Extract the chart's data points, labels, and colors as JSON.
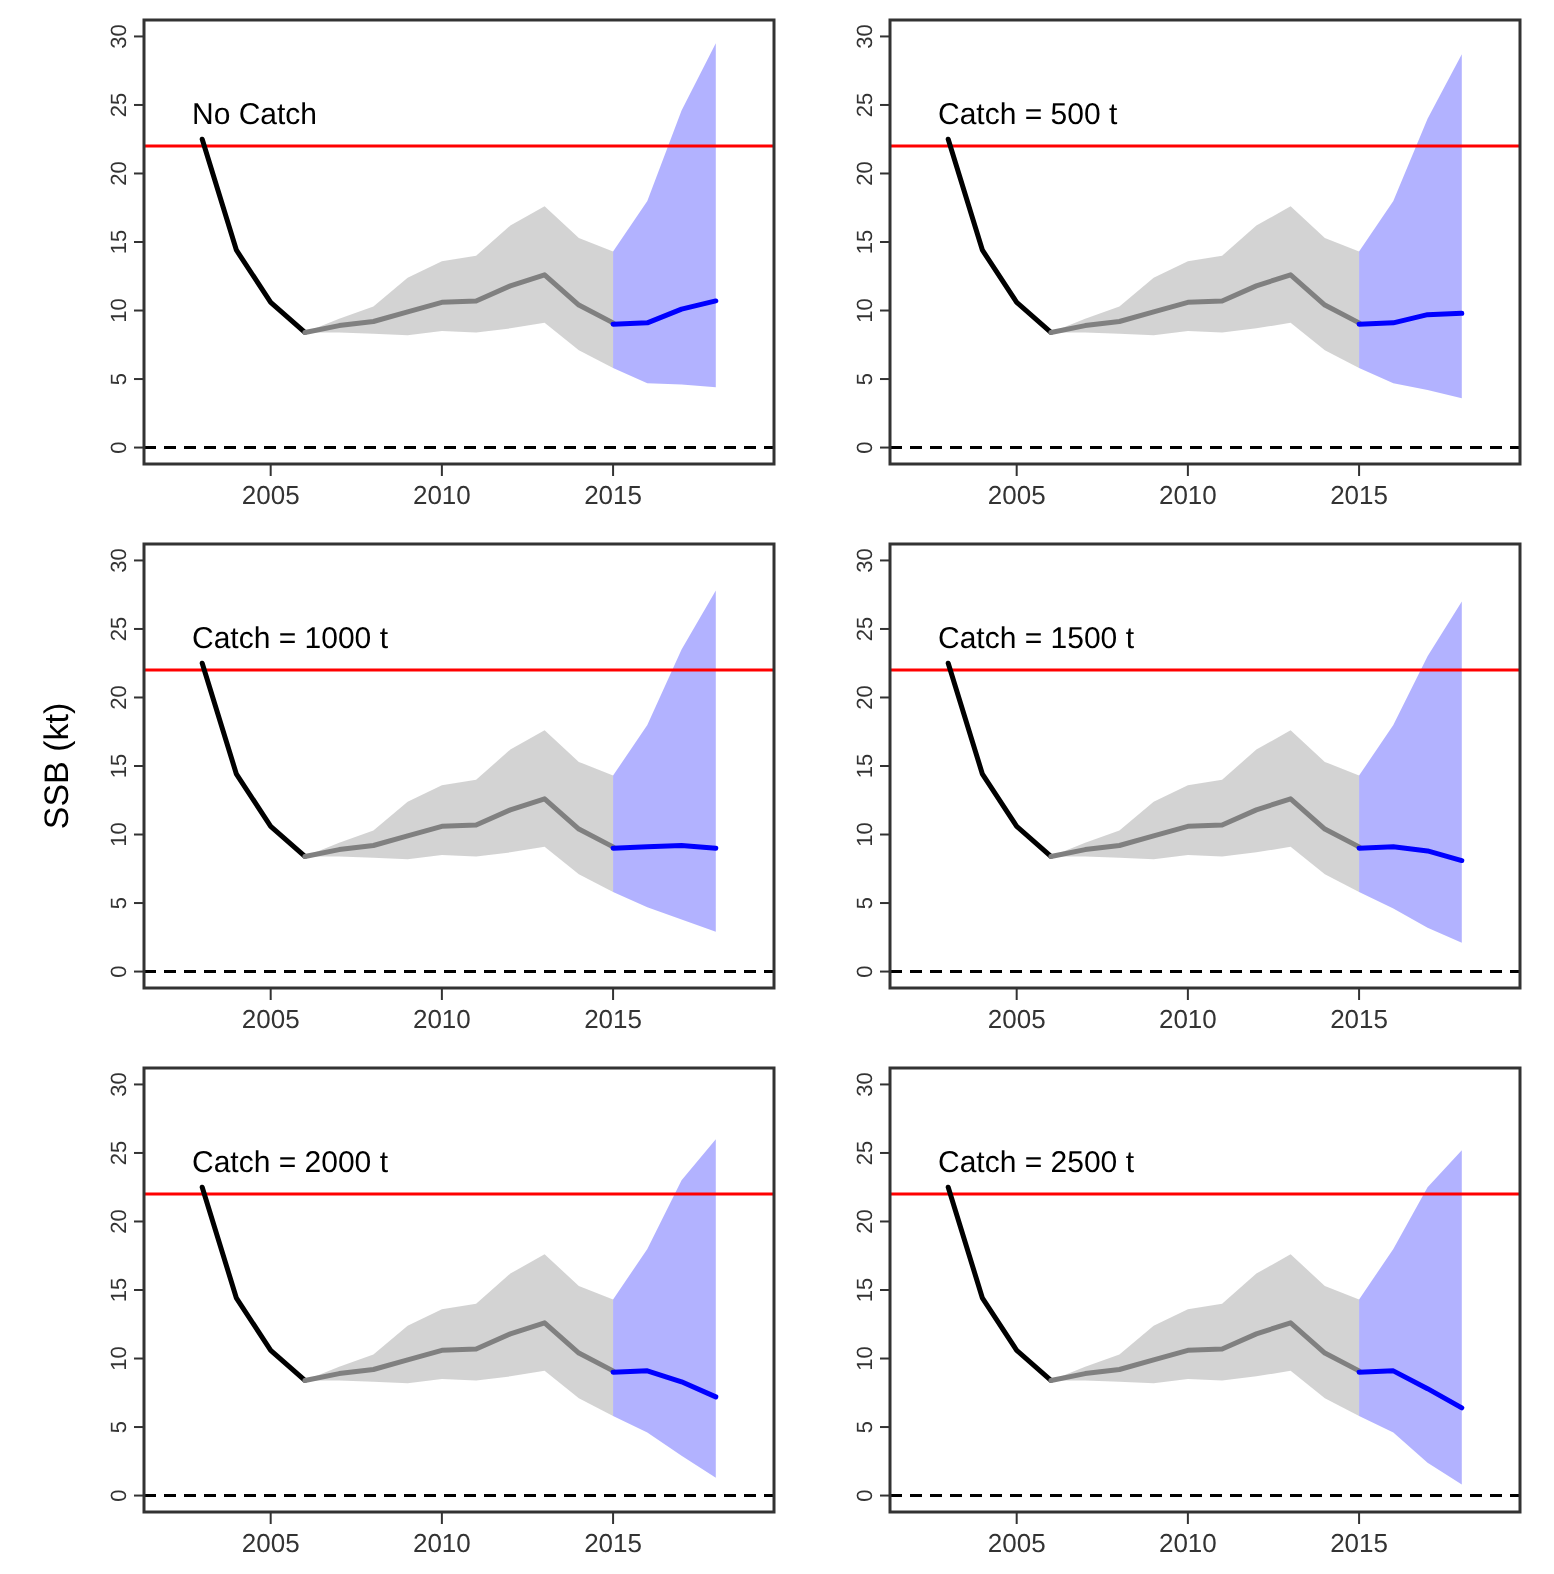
{
  "chart_data": [
    {
      "type": "line",
      "title": "No Catch",
      "xlim": [
        2001.3,
        2019.7
      ],
      "xticks": [
        2005,
        2010,
        2015
      ],
      "ylim": [
        -1.2,
        31.2
      ],
      "yticks": [
        0,
        5,
        10,
        15,
        20,
        25,
        30
      ],
      "series": [
        {
          "color": "#000000",
          "x": [
            2003,
            2004,
            2005,
            2006
          ],
          "values": [
            22.5,
            14.4,
            10.6,
            8.4
          ]
        },
        {
          "color": "#808080",
          "x": [
            2006,
            2007,
            2008,
            2009,
            2010,
            2011,
            2012,
            2013,
            2014,
            2015
          ],
          "values": [
            8.4,
            8.9,
            9.2,
            9.9,
            10.6,
            10.7,
            11.8,
            12.6,
            10.4,
            9.1
          ],
          "lower": [
            8.4,
            8.4,
            8.3,
            8.2,
            8.5,
            8.4,
            8.7,
            9.1,
            7.1,
            5.8
          ],
          "upper": [
            8.4,
            9.4,
            10.3,
            12.4,
            13.6,
            14,
            16.2,
            17.6,
            15.3,
            14.3
          ]
        },
        {
          "color": "#0000ff",
          "x": [
            2015,
            2016,
            2017,
            2018
          ],
          "values": [
            9.0,
            9.1,
            10.1,
            10.7
          ],
          "lower": [
            5.8,
            4.7,
            4.6,
            4.4
          ],
          "upper": [
            14.3,
            18,
            24.6,
            29.5
          ]
        }
      ],
      "ref_lines": [
        {
          "axis": "y",
          "value": 22,
          "color": "#ff0000",
          "line_style": "solid"
        },
        {
          "axis": "y",
          "value": 0,
          "color": "#000000",
          "line_style": "dashed"
        }
      ]
    },
    {
      "type": "line",
      "title": "Catch = 500 t",
      "xlim": [
        2001.3,
        2019.7
      ],
      "xticks": [
        2005,
        2010,
        2015
      ],
      "ylim": [
        -1.2,
        31.2
      ],
      "yticks": [
        0,
        5,
        10,
        15,
        20,
        25,
        30
      ],
      "series": [
        {
          "color": "#000000",
          "x": [
            2003,
            2004,
            2005,
            2006
          ],
          "values": [
            22.5,
            14.4,
            10.6,
            8.4
          ]
        },
        {
          "color": "#808080",
          "x": [
            2006,
            2007,
            2008,
            2009,
            2010,
            2011,
            2012,
            2013,
            2014,
            2015
          ],
          "values": [
            8.4,
            8.9,
            9.2,
            9.9,
            10.6,
            10.7,
            11.8,
            12.6,
            10.4,
            9.1
          ],
          "lower": [
            8.4,
            8.4,
            8.3,
            8.2,
            8.5,
            8.4,
            8.7,
            9.1,
            7.1,
            5.8
          ],
          "upper": [
            8.4,
            9.4,
            10.3,
            12.4,
            13.6,
            14,
            16.2,
            17.6,
            15.3,
            14.3
          ]
        },
        {
          "color": "#0000ff",
          "x": [
            2015,
            2016,
            2017,
            2018
          ],
          "values": [
            9.0,
            9.1,
            9.7,
            9.8
          ],
          "lower": [
            5.8,
            4.7,
            4.2,
            3.6
          ],
          "upper": [
            14.3,
            18,
            24,
            28.7
          ]
        }
      ],
      "ref_lines": [
        {
          "axis": "y",
          "value": 22,
          "color": "#ff0000",
          "line_style": "solid"
        },
        {
          "axis": "y",
          "value": 0,
          "color": "#000000",
          "line_style": "dashed"
        }
      ]
    },
    {
      "type": "line",
      "title": "Catch = 1000 t",
      "ylabel": "SSB (kt)",
      "xlim": [
        2001.3,
        2019.7
      ],
      "xticks": [
        2005,
        2010,
        2015
      ],
      "ylim": [
        -1.2,
        31.2
      ],
      "yticks": [
        0,
        5,
        10,
        15,
        20,
        25,
        30
      ],
      "series": [
        {
          "color": "#000000",
          "x": [
            2003,
            2004,
            2005,
            2006
          ],
          "values": [
            22.5,
            14.4,
            10.6,
            8.4
          ]
        },
        {
          "color": "#808080",
          "x": [
            2006,
            2007,
            2008,
            2009,
            2010,
            2011,
            2012,
            2013,
            2014,
            2015
          ],
          "values": [
            8.4,
            8.9,
            9.2,
            9.9,
            10.6,
            10.7,
            11.8,
            12.6,
            10.4,
            9.1
          ],
          "lower": [
            8.4,
            8.4,
            8.3,
            8.2,
            8.5,
            8.4,
            8.7,
            9.1,
            7.1,
            5.8
          ],
          "upper": [
            8.4,
            9.4,
            10.3,
            12.4,
            13.6,
            14,
            16.2,
            17.6,
            15.3,
            14.3
          ]
        },
        {
          "color": "#0000ff",
          "x": [
            2015,
            2016,
            2017,
            2018
          ],
          "values": [
            9.0,
            9.1,
            9.2,
            9.0
          ],
          "lower": [
            5.8,
            4.7,
            3.8,
            2.9
          ],
          "upper": [
            14.3,
            18,
            23.5,
            27.8
          ]
        }
      ],
      "ref_lines": [
        {
          "axis": "y",
          "value": 22,
          "color": "#ff0000",
          "line_style": "solid"
        },
        {
          "axis": "y",
          "value": 0,
          "color": "#000000",
          "line_style": "dashed"
        }
      ]
    },
    {
      "type": "line",
      "title": "Catch = 1500 t",
      "xlim": [
        2001.3,
        2019.7
      ],
      "xticks": [
        2005,
        2010,
        2015
      ],
      "ylim": [
        -1.2,
        31.2
      ],
      "yticks": [
        0,
        5,
        10,
        15,
        20,
        25,
        30
      ],
      "series": [
        {
          "color": "#000000",
          "x": [
            2003,
            2004,
            2005,
            2006
          ],
          "values": [
            22.5,
            14.4,
            10.6,
            8.4
          ]
        },
        {
          "color": "#808080",
          "x": [
            2006,
            2007,
            2008,
            2009,
            2010,
            2011,
            2012,
            2013,
            2014,
            2015
          ],
          "values": [
            8.4,
            8.9,
            9.2,
            9.9,
            10.6,
            10.7,
            11.8,
            12.6,
            10.4,
            9.1
          ],
          "lower": [
            8.4,
            8.4,
            8.3,
            8.2,
            8.5,
            8.4,
            8.7,
            9.1,
            7.1,
            5.8
          ],
          "upper": [
            8.4,
            9.4,
            10.3,
            12.4,
            13.6,
            14,
            16.2,
            17.6,
            15.3,
            14.3
          ]
        },
        {
          "color": "#0000ff",
          "x": [
            2015,
            2016,
            2017,
            2018
          ],
          "values": [
            9.0,
            9.1,
            8.8,
            8.1
          ],
          "lower": [
            5.8,
            4.6,
            3.2,
            2.1
          ],
          "upper": [
            14.3,
            18,
            23,
            27
          ]
        }
      ],
      "ref_lines": [
        {
          "axis": "y",
          "value": 22,
          "color": "#ff0000",
          "line_style": "solid"
        },
        {
          "axis": "y",
          "value": 0,
          "color": "#000000",
          "line_style": "dashed"
        }
      ]
    },
    {
      "type": "line",
      "title": "Catch = 2000 t",
      "xlim": [
        2001.3,
        2019.7
      ],
      "xticks": [
        2005,
        2010,
        2015
      ],
      "ylim": [
        -1.2,
        31.2
      ],
      "yticks": [
        0,
        5,
        10,
        15,
        20,
        25,
        30
      ],
      "series": [
        {
          "color": "#000000",
          "x": [
            2003,
            2004,
            2005,
            2006
          ],
          "values": [
            22.5,
            14.4,
            10.6,
            8.4
          ]
        },
        {
          "color": "#808080",
          "x": [
            2006,
            2007,
            2008,
            2009,
            2010,
            2011,
            2012,
            2013,
            2014,
            2015
          ],
          "values": [
            8.4,
            8.9,
            9.2,
            9.9,
            10.6,
            10.7,
            11.8,
            12.6,
            10.4,
            9.1
          ],
          "lower": [
            8.4,
            8.4,
            8.3,
            8.2,
            8.5,
            8.4,
            8.7,
            9.1,
            7.1,
            5.8
          ],
          "upper": [
            8.4,
            9.4,
            10.3,
            12.4,
            13.6,
            14,
            16.2,
            17.6,
            15.3,
            14.3
          ]
        },
        {
          "color": "#0000ff",
          "x": [
            2015,
            2016,
            2017,
            2018
          ],
          "values": [
            9.0,
            9.1,
            8.3,
            7.2
          ],
          "lower": [
            5.8,
            4.6,
            2.9,
            1.3
          ],
          "upper": [
            14.3,
            18,
            23,
            26
          ]
        }
      ],
      "ref_lines": [
        {
          "axis": "y",
          "value": 22,
          "color": "#ff0000",
          "line_style": "solid"
        },
        {
          "axis": "y",
          "value": 0,
          "color": "#000000",
          "line_style": "dashed"
        }
      ]
    },
    {
      "type": "line",
      "title": "Catch = 2500 t",
      "xlim": [
        2001.3,
        2019.7
      ],
      "xticks": [
        2005,
        2010,
        2015
      ],
      "ylim": [
        -1.2,
        31.2
      ],
      "yticks": [
        0,
        5,
        10,
        15,
        20,
        25,
        30
      ],
      "series": [
        {
          "color": "#000000",
          "x": [
            2003,
            2004,
            2005,
            2006
          ],
          "values": [
            22.5,
            14.4,
            10.6,
            8.4
          ]
        },
        {
          "color": "#808080",
          "x": [
            2006,
            2007,
            2008,
            2009,
            2010,
            2011,
            2012,
            2013,
            2014,
            2015
          ],
          "values": [
            8.4,
            8.9,
            9.2,
            9.9,
            10.6,
            10.7,
            11.8,
            12.6,
            10.4,
            9.1
          ],
          "lower": [
            8.4,
            8.4,
            8.3,
            8.2,
            8.5,
            8.4,
            8.7,
            9.1,
            7.1,
            5.8
          ],
          "upper": [
            8.4,
            9.4,
            10.3,
            12.4,
            13.6,
            14,
            16.2,
            17.6,
            15.3,
            14.3
          ]
        },
        {
          "color": "#0000ff",
          "x": [
            2015,
            2016,
            2017,
            2018
          ],
          "values": [
            9.0,
            9.1,
            7.8,
            6.4
          ],
          "lower": [
            5.8,
            4.6,
            2.4,
            0.8
          ],
          "upper": [
            14.3,
            18,
            22.5,
            25.2
          ]
        }
      ],
      "ref_lines": [
        {
          "axis": "y",
          "value": 22,
          "color": "#ff0000",
          "line_style": "solid"
        },
        {
          "axis": "y",
          "value": 0,
          "color": "#000000",
          "line_style": "dashed"
        }
      ]
    }
  ]
}
